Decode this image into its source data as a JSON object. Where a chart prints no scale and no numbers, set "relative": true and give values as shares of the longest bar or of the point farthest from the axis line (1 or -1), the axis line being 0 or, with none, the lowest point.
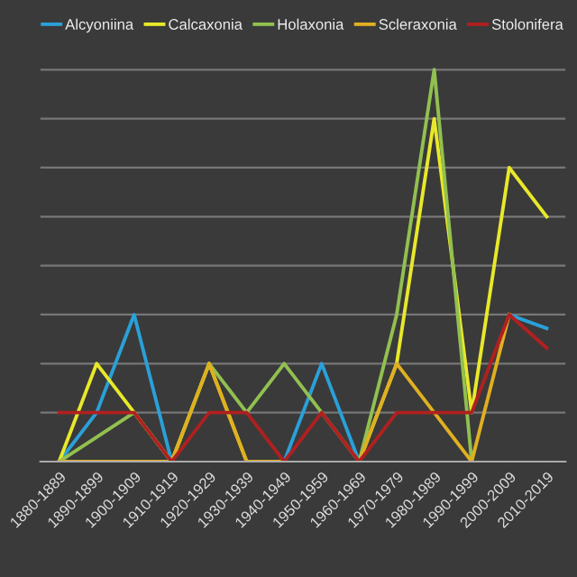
{
  "chart_data": {
    "type": "line",
    "relative": true,
    "grid": "y",
    "legend": "top",
    "marker": "none",
    "line_style": "solid",
    "categories": [
      "1880-1889",
      "1890-1899",
      "1900-1909",
      "1910-1919",
      "1920-1929",
      "1930-1939",
      "1940-1949",
      "1950-1959",
      "1960-1969",
      "1970-1979",
      "1980-1989",
      "1990-1999",
      "2000-2009",
      "2010-2019"
    ],
    "series": [
      {
        "name": "Alcyoniina",
        "color": "#2aa0d8",
        "values": [
          0,
          0.125,
          0.375,
          0,
          null,
          null,
          0,
          0.25,
          0,
          null,
          null,
          null,
          0.375,
          0.34
        ]
      },
      {
        "name": "Calcaxonia",
        "color": "#e8e82a",
        "values": [
          0,
          0.25,
          0.125,
          0,
          0.25,
          0,
          null,
          null,
          0,
          0.25,
          0.875,
          0.125,
          0.75,
          0.625
        ]
      },
      {
        "name": "Holaxonia",
        "color": "#92c050",
        "values": [
          0,
          0.0625,
          0.125,
          0,
          0.25,
          0.125,
          0.25,
          0.125,
          0,
          0.375,
          1,
          0,
          null,
          null
        ]
      },
      {
        "name": "Scleraxonia",
        "color": "#e0b020",
        "values": [
          0,
          0,
          0,
          0,
          0.25,
          0,
          0,
          null,
          0,
          0.25,
          0.125,
          0,
          0.375,
          null
        ]
      },
      {
        "name": "Stolonifera",
        "color": "#b02020",
        "values": [
          0.125,
          0.125,
          0.125,
          0,
          0.125,
          0.125,
          0,
          0.125,
          0,
          0.125,
          0.125,
          0.125,
          0.375,
          0.29
        ]
      }
    ]
  }
}
